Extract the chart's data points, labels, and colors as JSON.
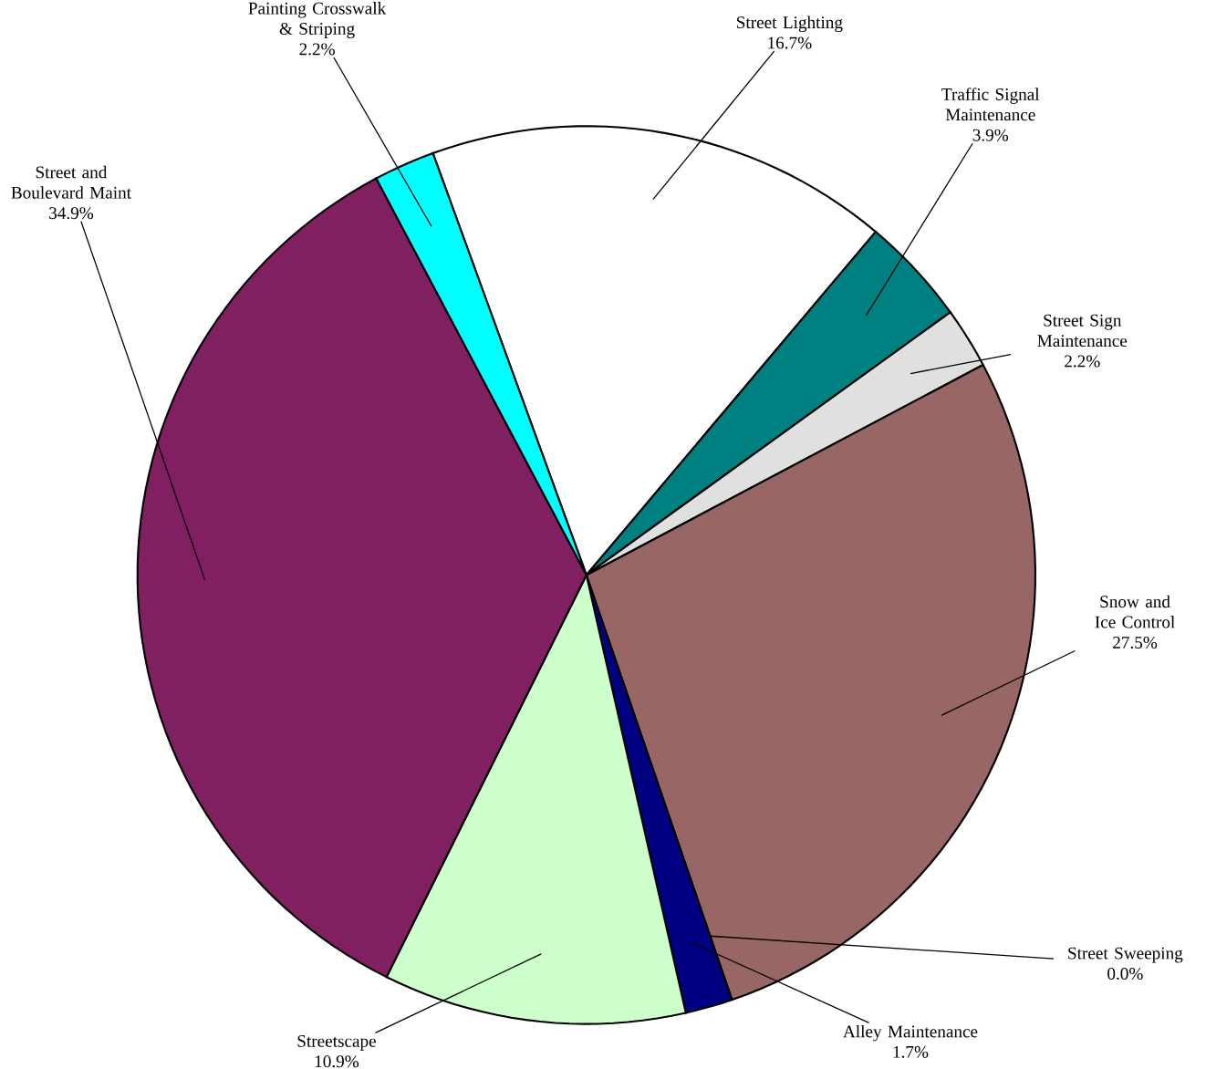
{
  "chart_data": {
    "type": "pie",
    "categories": [
      "Street Lighting",
      "Traffic Signal Maintenance",
      "Street Sign Maintenance",
      "Snow and Ice Control",
      "Street Sweeping",
      "Alley Maintenance",
      "Streetscape",
      "Street and Boulevard Maint",
      "Painting Crosswalk & Striping"
    ],
    "values": [
      16.7,
      3.9,
      2.2,
      27.5,
      0.0,
      1.7,
      10.9,
      34.9,
      2.2
    ],
    "colors": [
      "#ffffff",
      "#008080",
      "#e0e0e0",
      "#996666",
      "#ffffff",
      "#000080",
      "#ccffcc",
      "#802060",
      "#00ffff"
    ],
    "value_labels": [
      "16.7%",
      "3.9%",
      "2.2%",
      "27.5%",
      "0.0%",
      "1.7%",
      "10.9%",
      "34.9%",
      "2.2%"
    ]
  }
}
